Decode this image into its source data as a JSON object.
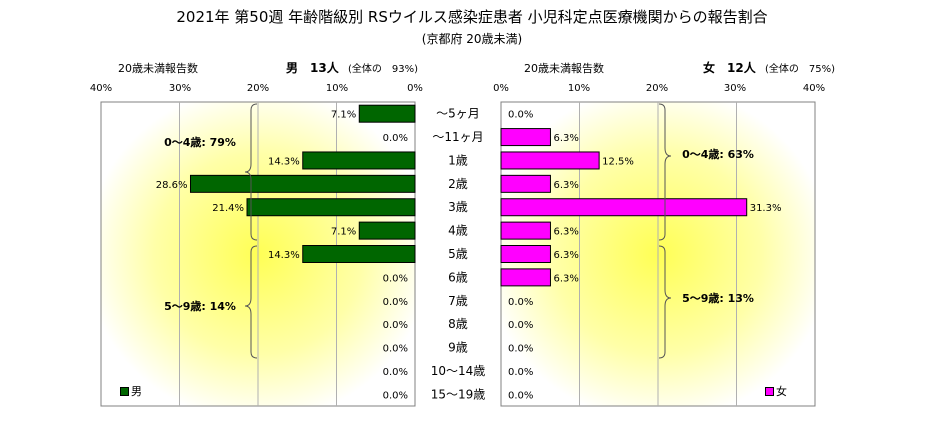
{
  "title": "2021年 第50週 年齢階級別 RSウイルス感染症患者 小児科定点医療機関からの報告割合",
  "subtitle": "(京都府 20歳未満)",
  "male_header": {
    "axis_label": "20歳未満報告数",
    "label": "男　13人",
    "share": "(全体の　93%)"
  },
  "female_header": {
    "axis_label": "20歳未満報告数",
    "label": "女　12人",
    "share": "(全体の　75%)"
  },
  "colors": {
    "male": "#006600",
    "female": "#ff00ff",
    "bg_yellow": "#ffff66"
  },
  "chart_data": {
    "type": "bar",
    "categories": [
      "～5ヶ月",
      "～11ヶ月",
      "1歳",
      "2歳",
      "3歳",
      "4歳",
      "5歳",
      "6歳",
      "7歳",
      "8歳",
      "9歳",
      "10～14歳",
      "15～19歳"
    ],
    "series": [
      {
        "name": "男",
        "values": [
          7.1,
          0.0,
          14.3,
          28.6,
          21.4,
          7.1,
          14.3,
          0.0,
          0.0,
          0.0,
          0.0,
          0.0,
          0.0
        ],
        "labels": [
          "7.1%",
          "0.0%",
          "14.3%",
          "28.6%",
          "21.4%",
          "7.1%",
          "14.3%",
          "0.0%",
          "0.0%",
          "0.0%",
          "0.0%",
          "0.0%",
          "0.0%"
        ]
      },
      {
        "name": "女",
        "values": [
          0.0,
          6.3,
          12.5,
          6.3,
          31.3,
          6.3,
          6.3,
          6.3,
          0.0,
          0.0,
          0.0,
          0.0,
          0.0
        ],
        "labels": [
          "0.0%",
          "6.3%",
          "12.5%",
          "6.3%",
          "31.3%",
          "6.3%",
          "6.3%",
          "6.3%",
          "0.0%",
          "0.0%",
          "0.0%",
          "0.0%",
          "0.0%"
        ]
      }
    ],
    "xlim": [
      0,
      40
    ],
    "ticks_male": [
      "40%",
      "30%",
      "20%",
      "10%",
      "0%"
    ],
    "ticks_female": [
      "0%",
      "10%",
      "20%",
      "30%",
      "40%"
    ],
    "annotations": {
      "male_0_4": "0～4歳: 79%",
      "male_5_9": "5～9歳: 14%",
      "female_0_4": "0～4歳: 63%",
      "female_5_9": "5～9歳: 13%"
    },
    "legend_male": "男",
    "legend_female": "女"
  }
}
